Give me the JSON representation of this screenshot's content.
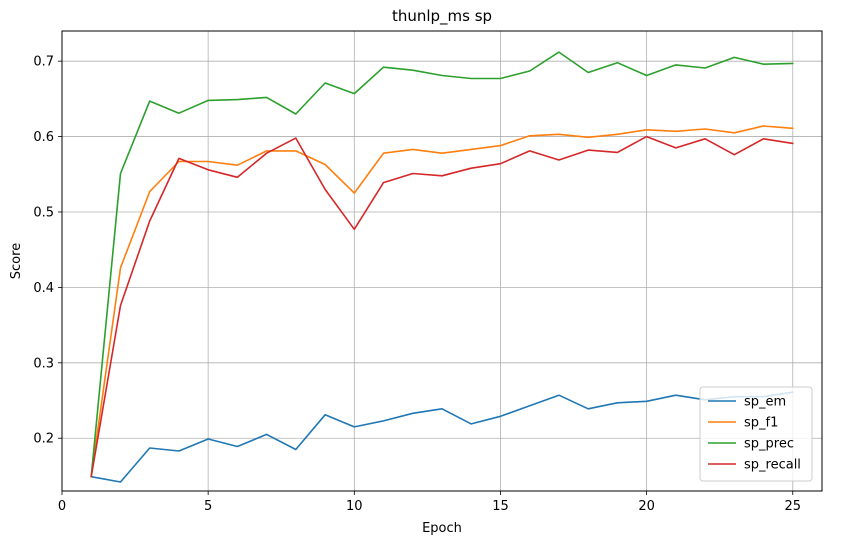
{
  "chart_data": {
    "type": "line",
    "title": "thunlp_ms sp",
    "xlabel": "Epoch",
    "ylabel": "Score",
    "xlim": [
      0,
      26
    ],
    "ylim": [
      0.13,
      0.74
    ],
    "xticks": [
      0,
      5,
      10,
      15,
      20,
      25
    ],
    "yticks": [
      0.2,
      0.3,
      0.4,
      0.5,
      0.6,
      0.7
    ],
    "xtick_labels": [
      "0",
      "5",
      "10",
      "15",
      "20",
      "25"
    ],
    "ytick_labels": [
      "0.2",
      "0.3",
      "0.4",
      "0.5",
      "0.6",
      "0.7"
    ],
    "grid": true,
    "legend_position": "lower right",
    "x": [
      1,
      2,
      3,
      4,
      5,
      6,
      7,
      8,
      9,
      10,
      11,
      12,
      13,
      14,
      15,
      16,
      17,
      18,
      19,
      20,
      21,
      22,
      23,
      24,
      25
    ],
    "series": [
      {
        "name": "sp_em",
        "color": "#1f77b4",
        "values": [
          0.149,
          0.142,
          0.187,
          0.183,
          0.199,
          0.189,
          0.205,
          0.185,
          0.231,
          0.215,
          0.223,
          0.233,
          0.239,
          0.219,
          0.229,
          0.243,
          0.257,
          0.239,
          0.247,
          0.249,
          0.257,
          0.251,
          0.255,
          0.255,
          0.261
        ]
      },
      {
        "name": "sp_f1",
        "color": "#ff7f0e",
        "values": [
          0.149,
          0.426,
          0.527,
          0.567,
          0.567,
          0.562,
          0.581,
          0.581,
          0.563,
          0.525,
          0.578,
          0.583,
          0.578,
          0.583,
          0.588,
          0.601,
          0.603,
          0.599,
          0.603,
          0.609,
          0.607,
          0.61,
          0.605,
          0.614,
          0.611
        ]
      },
      {
        "name": "sp_prec",
        "color": "#2ca02c",
        "values": [
          0.149,
          0.551,
          0.647,
          0.631,
          0.648,
          0.649,
          0.652,
          0.63,
          0.671,
          0.657,
          0.692,
          0.688,
          0.681,
          0.677,
          0.677,
          0.687,
          0.712,
          0.685,
          0.698,
          0.681,
          0.695,
          0.691,
          0.705,
          0.696,
          0.697
        ]
      },
      {
        "name": "sp_recall",
        "color": "#d62728",
        "values": [
          0.149,
          0.376,
          0.488,
          0.571,
          0.556,
          0.546,
          0.578,
          0.598,
          0.53,
          0.477,
          0.539,
          0.551,
          0.548,
          0.558,
          0.564,
          0.581,
          0.569,
          0.582,
          0.579,
          0.6,
          0.585,
          0.597,
          0.576,
          0.597,
          0.591
        ]
      }
    ]
  }
}
